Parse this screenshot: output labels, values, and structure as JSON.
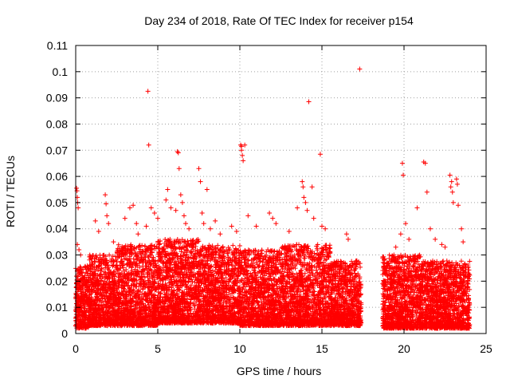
{
  "chart_data": {
    "type": "scatter",
    "title": "Day 234 of 2018, Rate Of TEC Index for receiver p154",
    "xlabel": "GPS time / hours",
    "ylabel": "ROTI / TECUs",
    "xlim": [
      0,
      25
    ],
    "ylim": [
      0,
      0.11
    ],
    "xticks": [
      0,
      5,
      10,
      15,
      20,
      25
    ],
    "xtick_labels": [
      "0",
      "5",
      "10",
      "15",
      "20",
      "25"
    ],
    "yticks": [
      0,
      0.01,
      0.02,
      0.03,
      0.04,
      0.05,
      0.06,
      0.07,
      0.08,
      0.09,
      0.1,
      0.11
    ],
    "ytick_labels": [
      "0",
      "0.01",
      "0.02",
      "0.03",
      "0.04",
      "0.05",
      "0.06",
      "0.07",
      "0.08",
      "0.09",
      "0.1",
      "0.11"
    ],
    "grid": true,
    "marker": "+",
    "color": "#ff0000",
    "gap_hours": [
      17.4,
      18.7
    ],
    "series": [
      {
        "name": "ROTI",
        "points": [
          [
            0.05,
            0.0555
          ],
          [
            0.08,
            0.0545
          ],
          [
            0.1,
            0.052
          ],
          [
            0.12,
            0.05
          ],
          [
            0.15,
            0.048
          ],
          [
            0.1,
            0.034
          ],
          [
            0.2,
            0.032
          ],
          [
            0.3,
            0.03
          ],
          [
            1.2,
            0.043
          ],
          [
            1.4,
            0.039
          ],
          [
            1.8,
            0.053
          ],
          [
            1.85,
            0.0495
          ],
          [
            1.9,
            0.045
          ],
          [
            2.0,
            0.042
          ],
          [
            2.3,
            0.035
          ],
          [
            3.0,
            0.044
          ],
          [
            3.3,
            0.048
          ],
          [
            3.5,
            0.049
          ],
          [
            3.7,
            0.042
          ],
          [
            3.8,
            0.038
          ],
          [
            4.4,
            0.0925
          ],
          [
            4.45,
            0.072
          ],
          [
            4.6,
            0.048
          ],
          [
            4.8,
            0.046
          ],
          [
            5.0,
            0.044
          ],
          [
            4.3,
            0.041
          ],
          [
            5.5,
            0.051
          ],
          [
            5.6,
            0.055
          ],
          [
            5.8,
            0.048
          ],
          [
            6.1,
            0.047
          ],
          [
            6.2,
            0.0695
          ],
          [
            6.25,
            0.069
          ],
          [
            6.3,
            0.063
          ],
          [
            6.4,
            0.053
          ],
          [
            6.5,
            0.05
          ],
          [
            6.6,
            0.045
          ],
          [
            6.7,
            0.042
          ],
          [
            6.9,
            0.04
          ],
          [
            7.5,
            0.063
          ],
          [
            7.6,
            0.058
          ],
          [
            7.7,
            0.046
          ],
          [
            7.8,
            0.042
          ],
          [
            8.0,
            0.055
          ],
          [
            8.2,
            0.04
          ],
          [
            8.5,
            0.043
          ],
          [
            8.8,
            0.038
          ],
          [
            9.5,
            0.041
          ],
          [
            9.8,
            0.039
          ],
          [
            10.05,
            0.072
          ],
          [
            10.1,
            0.0715
          ],
          [
            10.1,
            0.07
          ],
          [
            10.15,
            0.068
          ],
          [
            10.2,
            0.066
          ],
          [
            10.3,
            0.072
          ],
          [
            10.5,
            0.045
          ],
          [
            11.0,
            0.041
          ],
          [
            11.8,
            0.046
          ],
          [
            12.0,
            0.044
          ],
          [
            12.2,
            0.042
          ],
          [
            13.0,
            0.039
          ],
          [
            13.5,
            0.048
          ],
          [
            13.8,
            0.058
          ],
          [
            13.85,
            0.056
          ],
          [
            13.9,
            0.052
          ],
          [
            14.0,
            0.05
          ],
          [
            14.1,
            0.047
          ],
          [
            14.2,
            0.0885
          ],
          [
            14.4,
            0.056
          ],
          [
            14.5,
            0.044
          ],
          [
            14.9,
            0.0685
          ],
          [
            15.0,
            0.041
          ],
          [
            15.2,
            0.04
          ],
          [
            16.5,
            0.038
          ],
          [
            16.6,
            0.036
          ],
          [
            17.3,
            0.101
          ],
          [
            18.8,
            0.028
          ],
          [
            19.0,
            0.027
          ],
          [
            19.5,
            0.033
          ],
          [
            19.8,
            0.038
          ],
          [
            19.9,
            0.065
          ],
          [
            19.95,
            0.0605
          ],
          [
            20.1,
            0.042
          ],
          [
            20.3,
            0.036
          ],
          [
            20.8,
            0.048
          ],
          [
            21.2,
            0.0655
          ],
          [
            21.3,
            0.065
          ],
          [
            21.4,
            0.054
          ],
          [
            21.6,
            0.04
          ],
          [
            21.9,
            0.036
          ],
          [
            22.3,
            0.034
          ],
          [
            22.5,
            0.033
          ],
          [
            22.8,
            0.0605
          ],
          [
            22.9,
            0.058
          ],
          [
            22.85,
            0.056
          ],
          [
            22.95,
            0.054
          ],
          [
            23.0,
            0.05
          ],
          [
            23.2,
            0.059
          ],
          [
            23.25,
            0.057
          ],
          [
            23.3,
            0.049
          ],
          [
            23.5,
            0.04
          ],
          [
            23.6,
            0.035
          ],
          [
            23.9,
            0.02
          ]
        ]
      }
    ],
    "density_bands": [
      {
        "x": [
          0.0,
          0.8
        ],
        "ymin": 0.002,
        "ymax": 0.026
      },
      {
        "x": [
          0.8,
          2.5
        ],
        "ymin": 0.003,
        "ymax": 0.03
      },
      {
        "x": [
          2.5,
          5.0
        ],
        "ymin": 0.003,
        "ymax": 0.034
      },
      {
        "x": [
          5.0,
          7.5
        ],
        "ymin": 0.004,
        "ymax": 0.036
      },
      {
        "x": [
          7.5,
          10.0
        ],
        "ymin": 0.004,
        "ymax": 0.034
      },
      {
        "x": [
          10.0,
          12.5
        ],
        "ymin": 0.003,
        "ymax": 0.032
      },
      {
        "x": [
          12.5,
          15.5
        ],
        "ymin": 0.003,
        "ymax": 0.034
      },
      {
        "x": [
          15.5,
          17.4
        ],
        "ymin": 0.003,
        "ymax": 0.028
      },
      {
        "x": [
          18.7,
          21.0
        ],
        "ymin": 0.002,
        "ymax": 0.03
      },
      {
        "x": [
          21.0,
          24.0
        ],
        "ymin": 0.002,
        "ymax": 0.028
      }
    ]
  }
}
